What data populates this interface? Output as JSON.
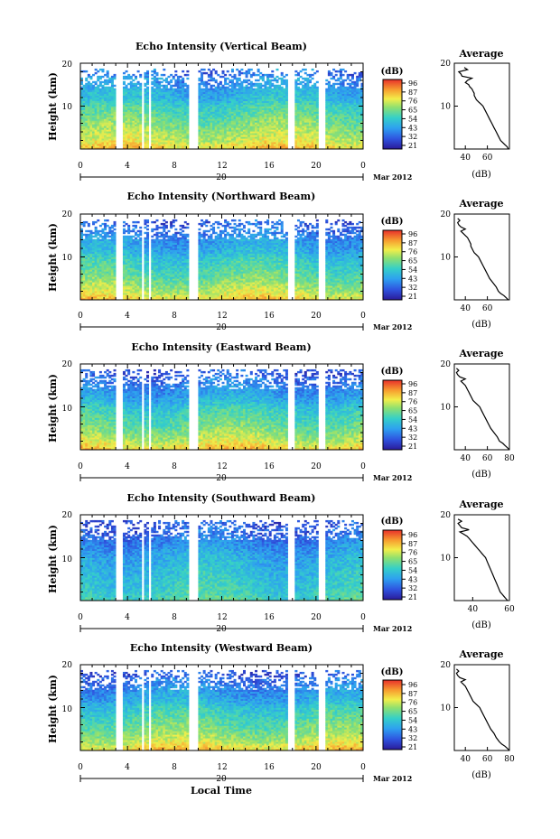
{
  "figure": {
    "x_axis_label": "Local Time",
    "date_label": "Mar 2012",
    "day_label": "20",
    "colorbar_unit": "(dB)",
    "average_title": "Average",
    "average_xlabel": "(dB)"
  },
  "chart_data": [
    {
      "type": "heatmap",
      "title": "Echo Intensity (Vertical Beam)",
      "ylabel": "Height (km)",
      "xlim": [
        0,
        24
      ],
      "ylim": [
        0,
        20
      ],
      "xticks": [
        "0",
        "4",
        "8",
        "12",
        "16",
        "20",
        "0"
      ],
      "yticks": [
        "10",
        "20"
      ],
      "colorbar_ticks": [
        "96",
        "87",
        "76",
        "65",
        "54",
        "43",
        "32",
        "21"
      ],
      "profile": {
        "title": "Average",
        "xlim": [
          30,
          80
        ],
        "xticks": [
          "40",
          "60"
        ],
        "x": [
          79,
          78,
          76,
          74,
          72,
          70,
          68,
          66,
          64,
          62,
          60,
          58,
          56,
          54,
          52,
          50,
          49,
          48,
          48,
          47,
          46,
          44,
          43,
          40,
          42,
          46,
          37,
          36,
          34,
          42,
          39
        ],
        "y": [
          0,
          0.5,
          1,
          1.5,
          2,
          3,
          4,
          5,
          6,
          7,
          8,
          9,
          10,
          10.5,
          11,
          11.5,
          12,
          12.5,
          13,
          13.5,
          14,
          14.5,
          15,
          15.5,
          16,
          16.5,
          17,
          17.5,
          18,
          18.5,
          19
        ]
      }
    },
    {
      "type": "heatmap",
      "title": "Echo Intensity (Northward Beam)",
      "ylabel": "Height (km)",
      "xlim": [
        0,
        24
      ],
      "ylim": [
        0,
        20
      ],
      "xticks": [
        "0",
        "4",
        "8",
        "12",
        "16",
        "20",
        "0"
      ],
      "yticks": [
        "10",
        "20"
      ],
      "colorbar_ticks": [
        "96",
        "87",
        "76",
        "65",
        "54",
        "43",
        "32",
        "21"
      ],
      "profile": {
        "title": "Average",
        "xlim": [
          30,
          80
        ],
        "xticks": [
          "40",
          "60"
        ],
        "x": [
          79,
          77,
          75,
          72,
          70,
          68,
          65,
          62,
          60,
          58,
          56,
          54,
          52,
          50,
          48,
          47,
          46,
          45,
          45,
          44,
          43,
          42,
          40,
          38,
          36,
          40,
          36,
          34,
          33,
          35,
          33
        ],
        "y": [
          0,
          0.5,
          1,
          1.5,
          2,
          3,
          4,
          5,
          6,
          7,
          8,
          9,
          10,
          10.5,
          11,
          11.5,
          12,
          12.5,
          13,
          13.5,
          14,
          14.5,
          15,
          15.5,
          16,
          16.5,
          17,
          17.5,
          18,
          18.5,
          19
        ]
      }
    },
    {
      "type": "heatmap",
      "title": "Echo Intensity (Eastward Beam)",
      "ylabel": "Height (km)",
      "xlim": [
        0,
        24
      ],
      "ylim": [
        0,
        20
      ],
      "xticks": [
        "0",
        "4",
        "8",
        "12",
        "16",
        "20",
        "0"
      ],
      "yticks": [
        "10",
        "20"
      ],
      "colorbar_ticks": [
        "96",
        "87",
        "76",
        "65",
        "54",
        "43",
        "32",
        "21"
      ],
      "profile": {
        "title": "Average",
        "xlim": [
          30,
          80
        ],
        "xticks": [
          "40",
          "60",
          "80"
        ],
        "x": [
          80,
          78,
          76,
          74,
          71,
          69,
          66,
          63,
          61,
          59,
          57,
          55,
          53,
          51,
          49,
          47,
          46,
          45,
          44,
          43,
          42,
          41,
          40,
          38,
          36,
          40,
          35,
          33,
          32,
          34,
          32
        ],
        "y": [
          0,
          0.5,
          1,
          1.5,
          2,
          3,
          4,
          5,
          6,
          7,
          8,
          9,
          10,
          10.5,
          11,
          11.5,
          12,
          12.5,
          13,
          13.5,
          14,
          14.5,
          15,
          15.5,
          16,
          16.5,
          17,
          17.5,
          18,
          18.5,
          19
        ]
      }
    },
    {
      "type": "heatmap",
      "title": "Echo Intensity (Southward Beam)",
      "ylabel": "Height (km)",
      "xlim": [
        0,
        24
      ],
      "ylim": [
        0,
        20
      ],
      "xticks": [
        "0",
        "4",
        "8",
        "12",
        "16",
        "20",
        "0"
      ],
      "yticks": [
        "10",
        "20"
      ],
      "colorbar_ticks": [
        "96",
        "87",
        "76",
        "65",
        "54",
        "43",
        "32",
        "21"
      ],
      "profile": {
        "title": "Average",
        "xlim": [
          30,
          60
        ],
        "xticks": [
          "40",
          "60"
        ],
        "x": [
          59,
          58,
          57,
          56,
          55,
          54,
          53,
          52,
          51,
          50,
          49,
          48,
          47,
          46,
          45,
          44,
          43,
          42,
          41,
          40,
          39,
          38,
          37,
          35,
          33,
          38,
          34,
          33,
          32,
          34,
          32
        ],
        "y": [
          0,
          0.5,
          1,
          1.5,
          2,
          3,
          4,
          5,
          6,
          7,
          8,
          9,
          10,
          10.5,
          11,
          11.5,
          12,
          12.5,
          13,
          13.5,
          14,
          14.5,
          15,
          15.5,
          16,
          16.5,
          17,
          17.5,
          18,
          18.5,
          19
        ]
      }
    },
    {
      "type": "heatmap",
      "title": "Echo Intensity (Westward Beam)",
      "ylabel": "Height (km)",
      "xlim": [
        0,
        24
      ],
      "ylim": [
        0,
        20
      ],
      "xticks": [
        "0",
        "4",
        "8",
        "12",
        "16",
        "20",
        "0"
      ],
      "yticks": [
        "10",
        "20"
      ],
      "colorbar_ticks": [
        "96",
        "87",
        "76",
        "65",
        "54",
        "43",
        "32",
        "21"
      ],
      "profile": {
        "title": "Average",
        "xlim": [
          30,
          80
        ],
        "xticks": [
          "40",
          "60",
          "80"
        ],
        "x": [
          80,
          78,
          76,
          73,
          71,
          68,
          66,
          63,
          61,
          59,
          57,
          55,
          53,
          51,
          49,
          47,
          46,
          45,
          44,
          43,
          42,
          41,
          40,
          38,
          36,
          40,
          35,
          33,
          32,
          34,
          32
        ],
        "y": [
          0,
          0.5,
          1,
          1.5,
          2,
          3,
          4,
          5,
          6,
          7,
          8,
          9,
          10,
          10.5,
          11,
          11.5,
          12,
          12.5,
          13,
          13.5,
          14,
          14.5,
          15,
          15.5,
          16,
          16.5,
          17,
          17.5,
          18,
          18.5,
          19
        ]
      }
    }
  ]
}
